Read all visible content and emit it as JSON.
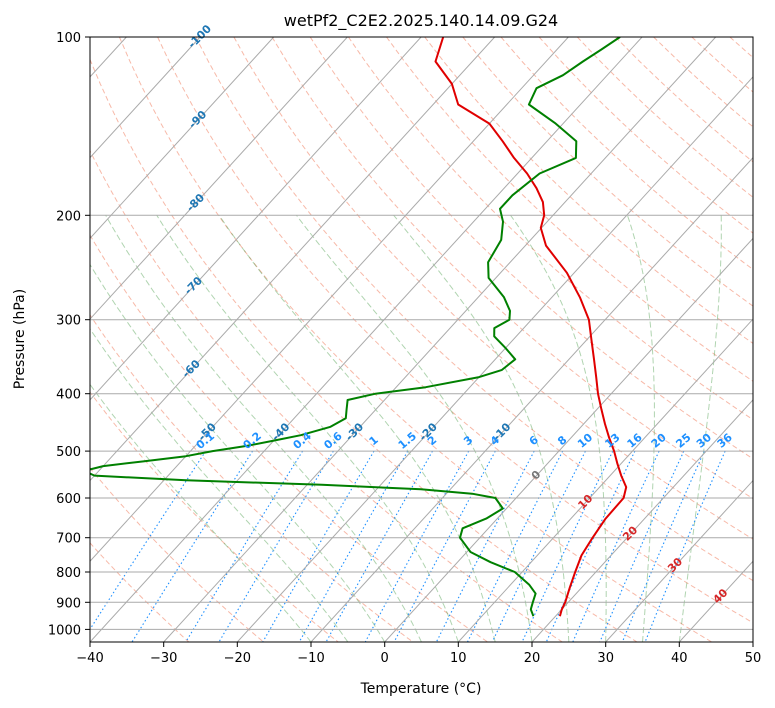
{
  "chart_data": {
    "type": "line",
    "subtype": "skew-T log-P diagram",
    "title": "wetPf2_C2E2.2025.140.14.09.G24",
    "xlabel": "Temperature (°C)",
    "ylabel": "Pressure (hPa)",
    "xlim": [
      -40,
      50
    ],
    "ylim": [
      1050,
      100
    ],
    "yscale": "log",
    "x_ticks": [
      -40,
      -30,
      -20,
      -10,
      0,
      10,
      20,
      30,
      40,
      50
    ],
    "y_ticks": [
      100,
      200,
      300,
      400,
      500,
      600,
      700,
      800,
      900,
      1000
    ],
    "grid": true,
    "colors": {
      "temperature": "#e00000",
      "dewpoint": "#008000",
      "isotherm": "#aaaaaa",
      "dry_adiabat": "#f08060",
      "moist_adiabat": "#50a050",
      "mixing_ratio": "#1e90ff",
      "isotherm_label": "#1f77b4",
      "dry_adiabat_label": "#d62728"
    },
    "series": [
      {
        "pressure": [
          950,
          925,
          900,
          850,
          800,
          750,
          700,
          650,
          600,
          575,
          550,
          525,
          500,
          475,
          450,
          425,
          400,
          375,
          350,
          325,
          300,
          275,
          250,
          225,
          210,
          200,
          190,
          180,
          170,
          160,
          150,
          140,
          130,
          120,
          110,
          100
        ],
        "values": [
          20.6,
          20.0,
          19.6,
          18.4,
          17.2,
          16.0,
          15.3,
          14.7,
          14.6,
          13.6,
          11.5,
          9.5,
          7.5,
          5.2,
          2.9,
          0.6,
          -1.8,
          -4.1,
          -6.6,
          -9.3,
          -12.2,
          -16.2,
          -21.0,
          -27.2,
          -30.1,
          -31.2,
          -33.0,
          -35.6,
          -38.7,
          -42.4,
          -46.0,
          -50.0,
          -56.6,
          -60.0,
          -65.0,
          -67.0
        ]
      },
      {
        "pressure": [
          950,
          925,
          900,
          870,
          840,
          800,
          770,
          740,
          700,
          675,
          650,
          625,
          600,
          590,
          580,
          570,
          560,
          550,
          540,
          530,
          520,
          510,
          500,
          490,
          480,
          470,
          455,
          440,
          425,
          410,
          400,
          390,
          375,
          365,
          350,
          335,
          320,
          310,
          300,
          290,
          275,
          255,
          240,
          220,
          205,
          195,
          185,
          170,
          160,
          150,
          140,
          130,
          122,
          116,
          110,
          105,
          100
        ],
        "values": [
          17.0,
          15.8,
          15.2,
          14.5,
          12.5,
          9.0,
          4.5,
          0.5,
          -2.7,
          -3.5,
          -1.5,
          -0.5,
          -2.8,
          -6.5,
          -14.0,
          -28.0,
          -47.0,
          -60.0,
          -62.0,
          -60.0,
          -55.0,
          -50.0,
          -47.0,
          -43.0,
          -40.0,
          -37.0,
          -34.0,
          -33.0,
          -34.0,
          -35.0,
          -32.0,
          -26.0,
          -20.0,
          -17.8,
          -17.3,
          -20.0,
          -23.0,
          -24.0,
          -23.0,
          -24.0,
          -26.5,
          -31.0,
          -33.0,
          -34.0,
          -36.0,
          -38.0,
          -38.0,
          -37.0,
          -34.0,
          -36.0,
          -41.0,
          -47.0,
          -48.0,
          -46.0,
          -45.0,
          -44.0,
          -43.0
        ]
      }
    ],
    "isotherm_labels": [
      "-100",
      "-90",
      "-80",
      "-70",
      "-60",
      "-50",
      "-40",
      "-30",
      "-20",
      "-10"
    ],
    "isotherm_label_temps": [
      -100,
      -90,
      -80,
      -70,
      -60,
      -50,
      -40,
      -30,
      -20,
      -10
    ],
    "mixing_ratio_labels": [
      "0.1",
      "0.2",
      "0.4",
      "0.6",
      "1",
      "1.5",
      "2",
      "3",
      "4",
      "6",
      "8",
      "10",
      "13",
      "16",
      "20",
      "25",
      "30",
      "36"
    ],
    "mixing_ratio_values": [
      0.1,
      0.2,
      0.4,
      0.6,
      1,
      1.5,
      2,
      3,
      4,
      6,
      8,
      10,
      13,
      16,
      20,
      25,
      30,
      36
    ],
    "dry_adiabat_labels": [
      "0",
      "10",
      "20",
      "30",
      "40"
    ],
    "dry_adiabat_label_temps": [
      0,
      10,
      20,
      30,
      40
    ]
  }
}
